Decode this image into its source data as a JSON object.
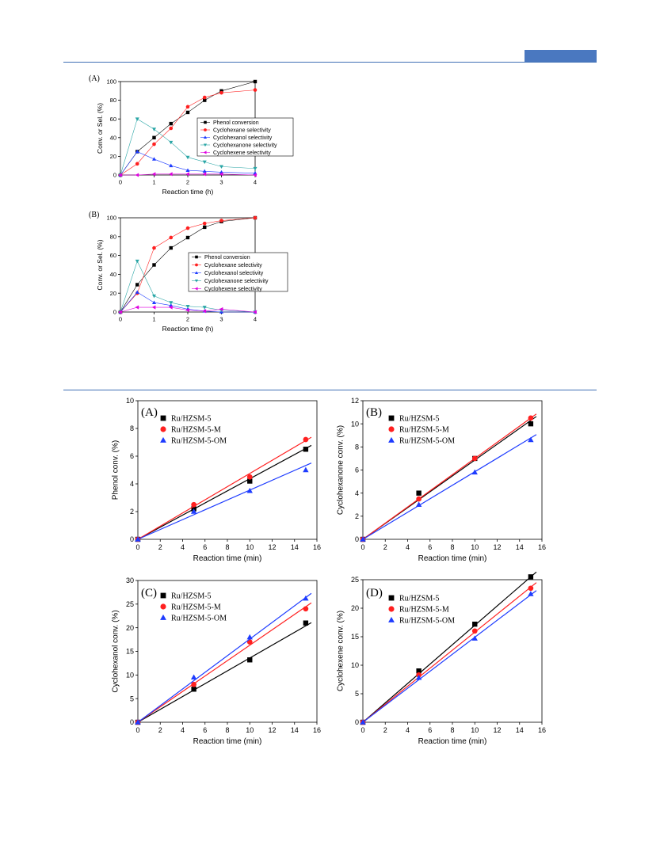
{
  "colors": {
    "rule": "#3f6fb5",
    "black": "#000000",
    "red": "#ff2020",
    "blue": "#1e3cff",
    "teal": "#2aa6a6",
    "magenta": "#e000e0"
  },
  "chart_data": [
    {
      "type": "line",
      "panel_label": "(A)",
      "xlabel": "Reaction time (h)",
      "ylabel": "Conv. or Sel. (%)",
      "xlim": [
        0,
        4
      ],
      "ylim": [
        0,
        100
      ],
      "xticks": [
        0,
        1,
        2,
        3,
        4
      ],
      "yticks": [
        0,
        20,
        40,
        60,
        80,
        100
      ],
      "legend_position": "center-right",
      "x": [
        0,
        0.5,
        1,
        1.5,
        2,
        2.5,
        3,
        4
      ],
      "series": [
        {
          "name": "Phenol conversion",
          "marker": "square",
          "color": "#000000",
          "values": [
            0,
            25,
            40,
            55,
            67,
            80,
            90,
            100
          ]
        },
        {
          "name": "Cyclohexane selectivity",
          "marker": "circle",
          "color": "#ff2020",
          "values": [
            0,
            12,
            33,
            50,
            73,
            83,
            88,
            91
          ]
        },
        {
          "name": "Cyclohexanol selectivity",
          "marker": "triangle-up",
          "color": "#1e3cff",
          "values": [
            0,
            25,
            17,
            10,
            5,
            4,
            3,
            2
          ]
        },
        {
          "name": "Cyclohexanone selectivity",
          "marker": "triangle-down",
          "color": "#2aa6a6",
          "values": [
            0,
            60,
            49,
            35,
            19,
            14,
            9,
            7
          ]
        },
        {
          "name": "Cyclohexene selectivity",
          "marker": "triangle-left",
          "color": "#e000e0",
          "values": [
            0,
            0,
            1,
            1,
            1,
            1,
            1,
            0
          ]
        }
      ]
    },
    {
      "type": "line",
      "panel_label": "(B)",
      "xlabel": "Reaction time (h)",
      "ylabel": "Conv. or Sel. (%)",
      "xlim": [
        0,
        4
      ],
      "ylim": [
        0,
        100
      ],
      "xticks": [
        0,
        1,
        2,
        3,
        4
      ],
      "yticks": [
        0,
        20,
        40,
        60,
        80,
        100
      ],
      "legend_position": "center-right",
      "x": [
        0,
        0.5,
        1,
        1.5,
        2,
        2.5,
        3,
        4
      ],
      "series": [
        {
          "name": "Phenol conversion",
          "marker": "square",
          "color": "#000000",
          "values": [
            0,
            29,
            50,
            68,
            79,
            90,
            96,
            100
          ]
        },
        {
          "name": "Cyclohexane selectivity",
          "marker": "circle",
          "color": "#ff2020",
          "values": [
            0,
            20,
            68,
            79,
            89,
            94,
            97,
            100
          ]
        },
        {
          "name": "Cyclohexanol selectivity",
          "marker": "triangle-up",
          "color": "#1e3cff",
          "values": [
            0,
            21,
            10,
            7,
            3,
            1,
            0,
            0
          ]
        },
        {
          "name": "Cyclohexanone selectivity",
          "marker": "triangle-down",
          "color": "#2aa6a6",
          "values": [
            0,
            54,
            17,
            10,
            6,
            5,
            2,
            0
          ]
        },
        {
          "name": "Cyclohexene selectivity",
          "marker": "triangle-left",
          "color": "#e000e0",
          "values": [
            0,
            5,
            5,
            5,
            2,
            1,
            3,
            0
          ]
        }
      ]
    },
    {
      "type": "scatter",
      "panel_label": "(A)",
      "xlabel": "Reaction time (min)",
      "ylabel": "Phenol conv. (%)",
      "xlim": [
        0,
        16
      ],
      "ylim": [
        0,
        10
      ],
      "xticks": [
        0,
        2,
        4,
        6,
        8,
        10,
        12,
        14,
        16
      ],
      "yticks": [
        0,
        2,
        4,
        6,
        8,
        10
      ],
      "legend_position": "top-left",
      "fit_to_x": 15.5,
      "x": [
        0,
        5,
        10,
        15
      ],
      "series": [
        {
          "name": "Ru/HZSM-5",
          "marker": "square",
          "color": "#000000",
          "values": [
            0,
            2.2,
            4.2,
            6.5
          ],
          "slope": 0.437
        },
        {
          "name": "Ru/HZSM-5-M",
          "marker": "circle",
          "color": "#ff2020",
          "values": [
            0,
            2.5,
            4.5,
            7.2
          ],
          "slope": 0.475
        },
        {
          "name": "Ru/HZSM-5-OM",
          "marker": "triangle-up",
          "color": "#1e3cff",
          "values": [
            0,
            2.0,
            3.5,
            5.0
          ],
          "slope": 0.355
        }
      ]
    },
    {
      "type": "scatter",
      "panel_label": "(B)",
      "xlabel": "Reaction time (min)",
      "ylabel": "Cyclohexanone conv. (%)",
      "xlim": [
        0,
        16
      ],
      "ylim": [
        0,
        12
      ],
      "xticks": [
        0,
        2,
        4,
        6,
        8,
        10,
        12,
        14,
        16
      ],
      "yticks": [
        0,
        2,
        4,
        6,
        8,
        10,
        12
      ],
      "legend_position": "top-left",
      "fit_to_x": 15.5,
      "x": [
        0,
        5,
        10,
        15
      ],
      "series": [
        {
          "name": "Ru/HZSM-5",
          "marker": "square",
          "color": "#000000",
          "values": [
            0,
            4.0,
            7.0,
            10.0
          ],
          "slope": 0.686
        },
        {
          "name": "Ru/HZSM-5-M",
          "marker": "circle",
          "color": "#ff2020",
          "values": [
            0,
            3.5,
            7.0,
            10.5
          ],
          "slope": 0.7
        },
        {
          "name": "Ru/HZSM-5-OM",
          "marker": "triangle-up",
          "color": "#1e3cff",
          "values": [
            0,
            3.0,
            5.8,
            8.6
          ],
          "slope": 0.585
        }
      ]
    },
    {
      "type": "scatter",
      "panel_label": "(C)",
      "xlabel": "Reaction time (min)",
      "ylabel": "Cyclohexanol conv. (%)",
      "xlim": [
        0,
        16
      ],
      "ylim": [
        0,
        30
      ],
      "xticks": [
        0,
        2,
        4,
        6,
        8,
        10,
        12,
        14,
        16
      ],
      "yticks": [
        0,
        5,
        10,
        15,
        20,
        25,
        30
      ],
      "legend_position": "top-left",
      "fit_to_x": 15.5,
      "x": [
        0,
        5,
        10,
        15
      ],
      "series": [
        {
          "name": "Ru/HZSM-5",
          "marker": "square",
          "color": "#000000",
          "values": [
            0,
            7.0,
            13.2,
            21.0
          ],
          "slope": 1.36
        },
        {
          "name": "Ru/HZSM-5-M",
          "marker": "circle",
          "color": "#ff2020",
          "values": [
            0,
            8.0,
            17.0,
            24.0
          ],
          "slope": 1.63
        },
        {
          "name": "Ru/HZSM-5-OM",
          "marker": "triangle-up",
          "color": "#1e3cff",
          "values": [
            0,
            9.5,
            18.0,
            26.2
          ],
          "slope": 1.76
        }
      ]
    },
    {
      "type": "scatter",
      "panel_label": "(D)",
      "xlabel": "Reaction time (min)",
      "ylabel": "Cyclohexene conv. (%)",
      "xlim": [
        0,
        16
      ],
      "ylim": [
        0,
        25
      ],
      "xticks": [
        0,
        2,
        4,
        6,
        8,
        10,
        12,
        14,
        16
      ],
      "yticks": [
        0,
        5,
        10,
        15,
        20,
        25
      ],
      "legend_position": "top-left",
      "fit_to_x": 15.5,
      "x": [
        0,
        5,
        10,
        15
      ],
      "series": [
        {
          "name": "Ru/HZSM-5",
          "marker": "square",
          "color": "#000000",
          "values": [
            0,
            9.0,
            17.2,
            25.5
          ],
          "slope": 1.7
        },
        {
          "name": "Ru/HZSM-5-M",
          "marker": "circle",
          "color": "#ff2020",
          "values": [
            0,
            8.3,
            16.0,
            23.5
          ],
          "slope": 1.58
        },
        {
          "name": "Ru/HZSM-5-OM",
          "marker": "triangle-up",
          "color": "#1e3cff",
          "values": [
            0,
            7.8,
            14.7,
            22.5
          ],
          "slope": 1.49
        }
      ]
    }
  ]
}
